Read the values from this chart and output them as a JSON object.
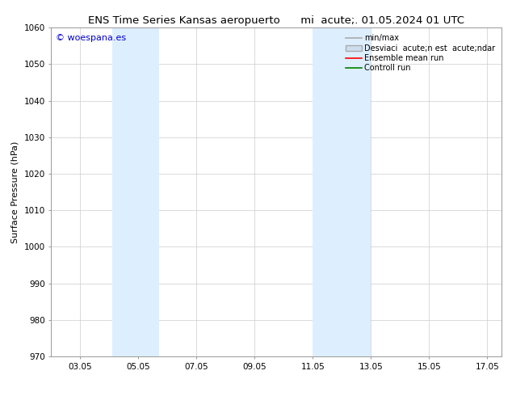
{
  "title": "ENS Time Series Kansas aeropuerto      mi  acute;. 01.05.2024 01 UTC",
  "ylabel": "Surface Pressure (hPa)",
  "xlim": [
    2.0,
    17.5
  ],
  "x_tick_vals": [
    3,
    5,
    7,
    9,
    11,
    13,
    15,
    17
  ],
  "x_tick_labels": [
    "03.05",
    "05.05",
    "07.05",
    "09.05",
    "11.05",
    "13.05",
    "15.05",
    "17.05"
  ],
  "ylim": [
    970,
    1060
  ],
  "yticks": [
    970,
    980,
    990,
    1000,
    1010,
    1020,
    1030,
    1040,
    1050,
    1060
  ],
  "shaded_regions": [
    {
      "x_start": 4.1,
      "x_end": 5.7
    },
    {
      "x_start": 11.0,
      "x_end": 13.0
    }
  ],
  "shade_color": "#ddeeff",
  "watermark_text": "© woespana.es",
  "watermark_color": "#0000cc",
  "legend_entries": [
    {
      "label": "min/max",
      "color": "#aaaaaa",
      "lw": 1.2,
      "type": "line"
    },
    {
      "label": "Desviaci  acute;n est  acute;ndar",
      "color": "#ccddee",
      "edgecolor": "#aaaaaa",
      "type": "patch"
    },
    {
      "label": "Ensemble mean run",
      "color": "red",
      "lw": 1.2,
      "type": "line"
    },
    {
      "label": "Controll run",
      "color": "green",
      "lw": 1.2,
      "type": "line"
    }
  ],
  "background_color": "#ffffff",
  "grid_color": "#cccccc",
  "title_fontsize": 9.5,
  "ylabel_fontsize": 8,
  "tick_fontsize": 7.5,
  "watermark_fontsize": 8,
  "legend_fontsize": 7
}
